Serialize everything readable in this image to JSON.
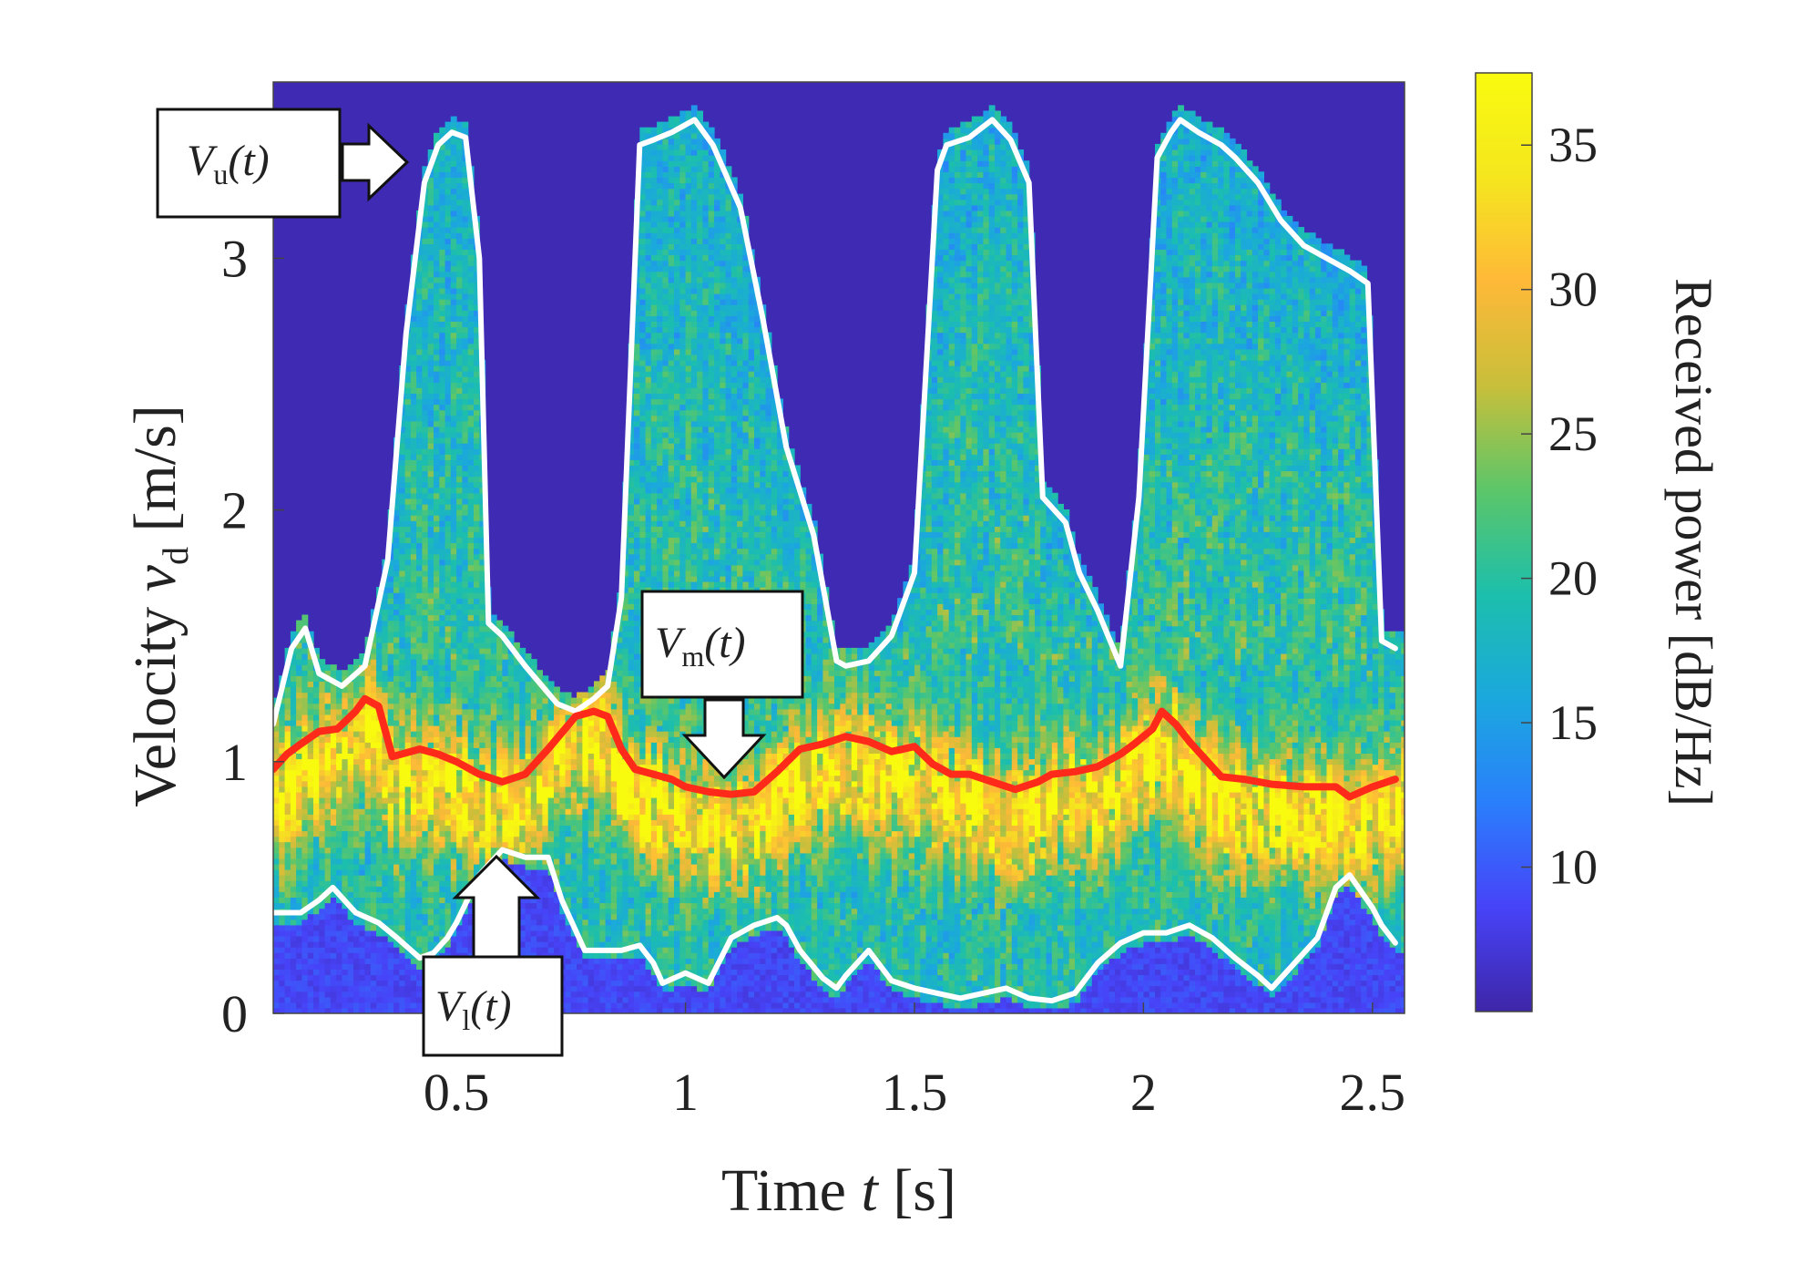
{
  "chart_data": {
    "type": "heatmap",
    "title": "",
    "xlabel": {
      "prefix": "Time ",
      "var": "t",
      "suffix": " [s]"
    },
    "ylabel": {
      "prefix": "Velocity ",
      "var": "v",
      "sub": "d",
      "suffix": " [m/s]"
    },
    "xlim": [
      0.1,
      2.57
    ],
    "ylim": [
      0,
      3.7
    ],
    "x_ticks": [
      0.5,
      1,
      1.5,
      2,
      2.5
    ],
    "x_tick_labels": [
      "0.5",
      "1",
      "1.5",
      "2",
      "2.5"
    ],
    "y_ticks": [
      0,
      1,
      2,
      3
    ],
    "y_tick_labels": [
      "0",
      "1",
      "2",
      "3"
    ],
    "colorbar": {
      "label": "Received power [dB/Hz]",
      "range": [
        5,
        37.5
      ],
      "ticks": [
        10,
        15,
        20,
        25,
        30,
        35
      ],
      "tick_labels": [
        "10",
        "15",
        "20",
        "25",
        "30",
        "35"
      ],
      "colormap": [
        "#3e26a8",
        "#4743f8",
        "#2a7ffc",
        "#1ba8dd",
        "#1cbfac",
        "#5cc669",
        "#c8bf3a",
        "#feb938",
        "#f5e61e",
        "#f9fb0e"
      ]
    },
    "heatmap_background_db": 5.5,
    "series": [
      {
        "name": "V_u(t)",
        "color": "#ffffff",
        "x": [
          0.1,
          0.14,
          0.17,
          0.2,
          0.25,
          0.3,
          0.35,
          0.39,
          0.43,
          0.46,
          0.49,
          0.52,
          0.55,
          0.57,
          0.6,
          0.65,
          0.72,
          0.76,
          0.8,
          0.83,
          0.86,
          0.9,
          0.93,
          0.97,
          1.02,
          1.06,
          1.12,
          1.17,
          1.22,
          1.28,
          1.33,
          1.35,
          1.4,
          1.45,
          1.5,
          1.55,
          1.57,
          1.62,
          1.67,
          1.71,
          1.75,
          1.78,
          1.83,
          1.86,
          1.9,
          1.95,
          1.99,
          2.03,
          2.06,
          2.08,
          2.12,
          2.17,
          2.2,
          2.25,
          2.3,
          2.35,
          2.4,
          2.45,
          2.49,
          2.52,
          2.55
        ],
        "y": [
          1.15,
          1.45,
          1.53,
          1.35,
          1.3,
          1.38,
          1.8,
          2.7,
          3.3,
          3.45,
          3.5,
          3.48,
          3.0,
          1.55,
          1.5,
          1.38,
          1.23,
          1.2,
          1.25,
          1.3,
          1.65,
          3.45,
          3.47,
          3.5,
          3.55,
          3.45,
          3.2,
          2.75,
          2.25,
          1.9,
          1.4,
          1.38,
          1.4,
          1.5,
          1.75,
          3.35,
          3.45,
          3.48,
          3.55,
          3.47,
          3.3,
          2.05,
          1.95,
          1.75,
          1.6,
          1.38,
          2.05,
          3.4,
          3.5,
          3.55,
          3.5,
          3.45,
          3.4,
          3.3,
          3.15,
          3.05,
          3.0,
          2.95,
          2.9,
          1.48,
          1.45
        ]
      },
      {
        "name": "V_m(t)",
        "color": "#ff2a1a",
        "x": [
          0.1,
          0.13,
          0.16,
          0.2,
          0.24,
          0.28,
          0.3,
          0.33,
          0.36,
          0.42,
          0.46,
          0.5,
          0.55,
          0.6,
          0.65,
          0.7,
          0.76,
          0.8,
          0.83,
          0.86,
          0.89,
          0.93,
          0.97,
          1.0,
          1.05,
          1.1,
          1.15,
          1.2,
          1.25,
          1.3,
          1.35,
          1.4,
          1.45,
          1.5,
          1.54,
          1.58,
          1.62,
          1.67,
          1.72,
          1.77,
          1.8,
          1.85,
          1.9,
          1.95,
          1.98,
          2.02,
          2.04,
          2.07,
          2.1,
          2.13,
          2.17,
          2.22,
          2.28,
          2.35,
          2.42,
          2.45,
          2.5,
          2.55
        ],
        "y": [
          0.97,
          1.03,
          1.07,
          1.12,
          1.13,
          1.2,
          1.25,
          1.22,
          1.02,
          1.05,
          1.03,
          1.0,
          0.95,
          0.92,
          0.95,
          1.05,
          1.18,
          1.2,
          1.18,
          1.05,
          0.97,
          0.95,
          0.93,
          0.9,
          0.88,
          0.87,
          0.88,
          0.96,
          1.05,
          1.07,
          1.1,
          1.08,
          1.04,
          1.06,
          0.99,
          0.95,
          0.95,
          0.92,
          0.89,
          0.92,
          0.95,
          0.96,
          0.98,
          1.03,
          1.07,
          1.13,
          1.2,
          1.15,
          1.08,
          1.02,
          0.94,
          0.93,
          0.91,
          0.9,
          0.9,
          0.86,
          0.9,
          0.93
        ]
      },
      {
        "name": "V_l(t)",
        "color": "#ffffff",
        "x": [
          0.1,
          0.16,
          0.2,
          0.23,
          0.28,
          0.33,
          0.37,
          0.42,
          0.45,
          0.48,
          0.5,
          0.55,
          0.6,
          0.65,
          0.7,
          0.73,
          0.78,
          0.82,
          0.86,
          0.9,
          0.93,
          0.95,
          1.0,
          1.05,
          1.1,
          1.15,
          1.2,
          1.22,
          1.25,
          1.3,
          1.33,
          1.35,
          1.4,
          1.45,
          1.5,
          1.55,
          1.6,
          1.65,
          1.7,
          1.75,
          1.8,
          1.85,
          1.9,
          1.95,
          2.0,
          2.05,
          2.1,
          2.15,
          2.2,
          2.25,
          2.28,
          2.33,
          2.38,
          2.42,
          2.45,
          2.5,
          2.52,
          2.55
        ],
        "y": [
          0.4,
          0.4,
          0.45,
          0.5,
          0.4,
          0.36,
          0.3,
          0.22,
          0.24,
          0.3,
          0.36,
          0.55,
          0.65,
          0.62,
          0.62,
          0.45,
          0.25,
          0.25,
          0.25,
          0.27,
          0.2,
          0.12,
          0.16,
          0.12,
          0.3,
          0.35,
          0.38,
          0.35,
          0.25,
          0.14,
          0.1,
          0.15,
          0.25,
          0.13,
          0.1,
          0.08,
          0.06,
          0.08,
          0.1,
          0.06,
          0.05,
          0.08,
          0.2,
          0.28,
          0.32,
          0.32,
          0.35,
          0.3,
          0.22,
          0.15,
          0.1,
          0.2,
          0.3,
          0.5,
          0.55,
          0.42,
          0.35,
          0.28
        ]
      }
    ],
    "annotations": [
      {
        "name": "V_u",
        "letter": "V",
        "sub": "u",
        "arg": "(t)",
        "target_series": "V_u(t)"
      },
      {
        "name": "V_m",
        "letter": "V",
        "sub": "m",
        "arg": "(t)",
        "target_series": "V_m(t)"
      },
      {
        "name": "V_l",
        "letter": "V",
        "sub": "l",
        "arg": "(t)",
        "target_series": "V_l(t)"
      }
    ]
  }
}
